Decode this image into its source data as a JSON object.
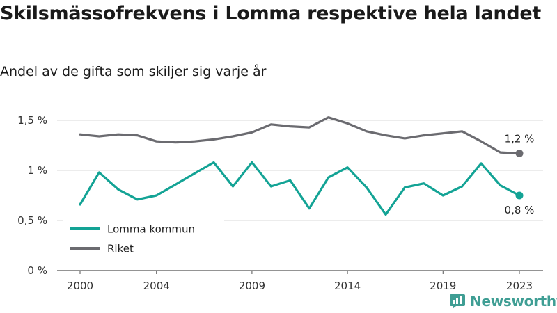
{
  "header": {
    "title": "Skilsmässofrekvens i Lomma respektive hela landet",
    "subtitle": "Andel av de gifta som skiljer sig varje år"
  },
  "brand": {
    "name": "Newsworthy",
    "icon": "newsworthy-logo-icon",
    "color": "#3f9e94"
  },
  "chart_data": {
    "type": "line",
    "title": "Skilsmässofrekvens i Lomma respektive hela landet",
    "subtitle": "Andel av de gifta som skiljer sig varje år",
    "x": [
      2000,
      2001,
      2002,
      2003,
      2004,
      2005,
      2006,
      2007,
      2008,
      2009,
      2010,
      2011,
      2012,
      2013,
      2014,
      2015,
      2016,
      2017,
      2018,
      2019,
      2020,
      2021,
      2022,
      2023
    ],
    "x_ticks": [
      2000,
      2004,
      2009,
      2014,
      2019,
      2023
    ],
    "x_tick_labels": [
      "2000",
      "2004",
      "2009",
      "2014",
      "2019",
      "2023"
    ],
    "ylim": [
      0,
      1.5
    ],
    "y_ticks": [
      0,
      0.5,
      1,
      1.5
    ],
    "y_tick_labels": [
      "0 %",
      "0,5 %",
      "1 %",
      "1,5 %"
    ],
    "grid": true,
    "legend_position": "bottom-left",
    "series": [
      {
        "name": "Lomma kommun",
        "color": "#13a395",
        "values": [
          0.66,
          0.98,
          0.81,
          0.71,
          0.75,
          0.86,
          0.97,
          1.08,
          0.84,
          1.08,
          0.84,
          0.9,
          0.62,
          0.93,
          1.03,
          0.83,
          0.56,
          0.83,
          0.87,
          0.75,
          0.84,
          1.07,
          0.85,
          0.75
        ],
        "end_label": "0,8 %"
      },
      {
        "name": "Riket",
        "color": "#6b6b70",
        "values": [
          1.36,
          1.34,
          1.36,
          1.35,
          1.29,
          1.28,
          1.29,
          1.31,
          1.34,
          1.38,
          1.46,
          1.44,
          1.43,
          1.53,
          1.47,
          1.39,
          1.35,
          1.32,
          1.35,
          1.37,
          1.39,
          1.29,
          1.18,
          1.17
        ],
        "end_label": "1,2 %"
      }
    ]
  }
}
